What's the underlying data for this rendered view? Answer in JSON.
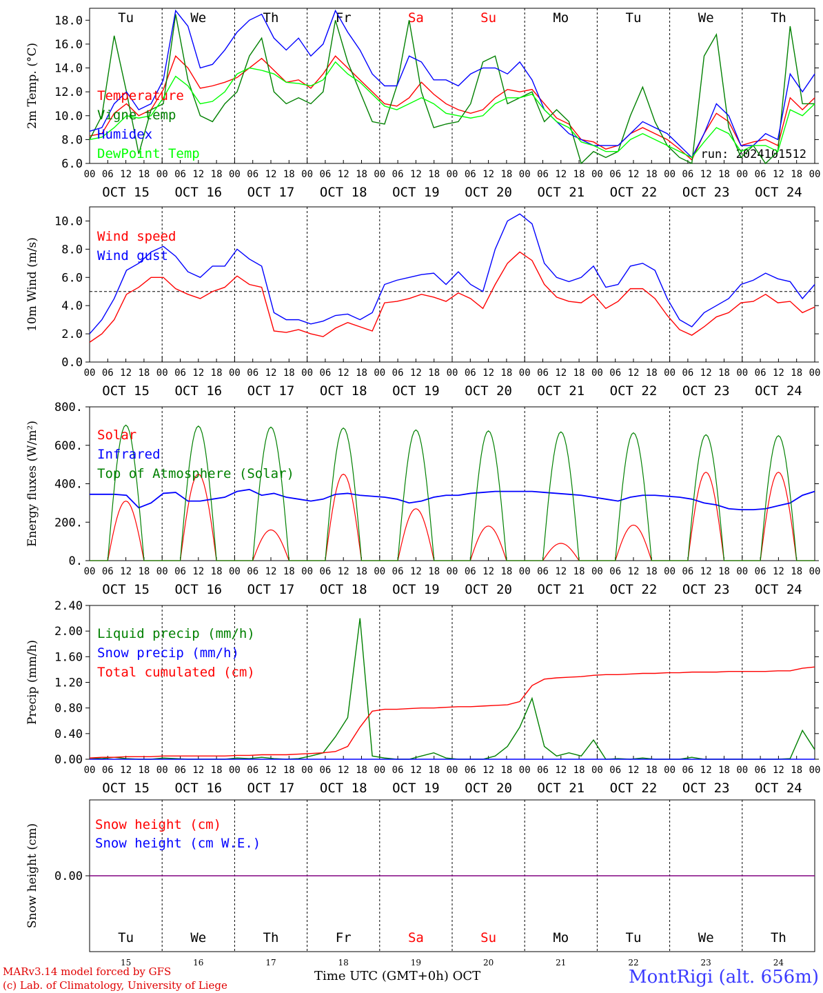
{
  "chart_data": [
    {
      "type": "line",
      "ylabel": "2m Temp. (°C)",
      "ylim": [
        6,
        19
      ],
      "yticks": [
        "6.0",
        "8.0",
        "10.0",
        "12.0",
        "14.0",
        "16.0",
        "18.0"
      ],
      "run_label": "run: 2024101512",
      "x_start": "2024-10-15 00 UTC",
      "x_step_hours": 6,
      "series": [
        {
          "name": "Temperature",
          "color": "#ff0000",
          "values": [
            8.3,
            8.5,
            10.2,
            11.0,
            10.0,
            10.5,
            12.2,
            15.0,
            14.0,
            12.3,
            12.5,
            12.8,
            13.2,
            14.0,
            14.8,
            13.8,
            12.8,
            13.0,
            12.3,
            13.5,
            15.0,
            14.0,
            13.0,
            12.0,
            11.0,
            10.8,
            11.5,
            12.8,
            11.8,
            11.0,
            10.5,
            10.2,
            10.5,
            11.5,
            12.2,
            12.0,
            12.2,
            11.0,
            9.8,
            9.3,
            8.0,
            7.8,
            7.2,
            7.5,
            8.5,
            9.0,
            8.5,
            8.0,
            7.2,
            6.3,
            8.5,
            10.2,
            9.5,
            7.5,
            7.8,
            8.0,
            7.5,
            11.5,
            10.5,
            11.5
          ]
        },
        {
          "name": "Vigne temp",
          "color": "#008000",
          "values": [
            8.0,
            10.0,
            16.7,
            12.0,
            6.8,
            10.5,
            11.0,
            18.5,
            13.0,
            10.0,
            9.5,
            11.0,
            12.0,
            15.0,
            16.5,
            12.0,
            11.0,
            11.5,
            11.0,
            12.0,
            18.0,
            14.5,
            12.0,
            9.5,
            9.3,
            12.5,
            18.0,
            12.0,
            9.0,
            9.3,
            9.5,
            11.0,
            14.5,
            15.0,
            11.0,
            11.5,
            12.0,
            9.5,
            10.5,
            9.5,
            6.0,
            7.0,
            6.5,
            7.0,
            10.0,
            12.4,
            9.5,
            7.5,
            6.5,
            6.0,
            15.0,
            16.8,
            9.0,
            6.5,
            7.5,
            6.0,
            7.0,
            17.5,
            11.0,
            11.0
          ]
        },
        {
          "name": "Humidex",
          "color": "#0000ff",
          "values": [
            8.7,
            9.0,
            11.0,
            12.0,
            10.5,
            11.0,
            13.0,
            18.8,
            17.5,
            14.0,
            14.3,
            15.5,
            17.0,
            18.0,
            18.5,
            16.5,
            15.5,
            16.5,
            15.0,
            16.0,
            18.8,
            17.0,
            15.5,
            13.5,
            12.5,
            12.5,
            15.0,
            14.5,
            13.0,
            13.0,
            12.5,
            13.5,
            14.0,
            14.0,
            13.5,
            14.5,
            13.0,
            10.5,
            9.5,
            8.5,
            8.0,
            7.5,
            7.5,
            7.5,
            8.5,
            9.5,
            9.0,
            8.5,
            7.5,
            6.5,
            8.5,
            11.0,
            10.0,
            7.5,
            7.5,
            8.5,
            8.0,
            13.5,
            12.0,
            13.5
          ]
        },
        {
          "name": "DewPoint Temp",
          "color": "#00ff00",
          "values": [
            8.0,
            8.2,
            9.0,
            10.0,
            9.8,
            10.0,
            11.5,
            13.3,
            12.5,
            11.0,
            11.2,
            12.0,
            13.5,
            14.0,
            13.8,
            13.5,
            12.8,
            12.7,
            12.5,
            13.0,
            14.5,
            13.5,
            12.8,
            11.8,
            10.8,
            10.5,
            11.0,
            11.5,
            11.0,
            10.2,
            10.0,
            9.8,
            10.0,
            11.0,
            11.5,
            11.5,
            11.8,
            10.5,
            9.5,
            9.0,
            7.8,
            7.5,
            7.0,
            7.0,
            8.0,
            8.5,
            8.0,
            7.5,
            7.0,
            6.5,
            7.8,
            9.0,
            8.5,
            7.0,
            7.5,
            7.5,
            7.0,
            10.5,
            10.0,
            11.0
          ]
        }
      ]
    },
    {
      "type": "line",
      "ylabel": "10m Wind (m/s)",
      "ylim": [
        0,
        11
      ],
      "yticks": [
        "0.0",
        "2.0",
        "4.0",
        "6.0",
        "8.0",
        "10.0"
      ],
      "reference_line": 5.0,
      "x_start": "2024-10-15 00 UTC",
      "x_step_hours": 6,
      "series": [
        {
          "name": "Wind speed",
          "color": "#ff0000",
          "values": [
            1.4,
            2.0,
            3.0,
            4.8,
            5.3,
            6.0,
            6.0,
            5.2,
            4.8,
            4.5,
            5.0,
            5.3,
            6.1,
            5.5,
            5.3,
            2.2,
            2.1,
            2.3,
            2.0,
            1.8,
            2.4,
            2.8,
            2.5,
            2.2,
            4.2,
            4.3,
            4.5,
            4.8,
            4.6,
            4.3,
            4.9,
            4.5,
            3.8,
            5.5,
            7.0,
            7.8,
            7.2,
            5.5,
            4.6,
            4.3,
            4.2,
            4.8,
            3.8,
            4.3,
            5.2,
            5.2,
            4.5,
            3.3,
            2.3,
            1.9,
            2.5,
            3.2,
            3.5,
            4.2,
            4.3,
            4.8,
            4.2,
            4.3,
            3.5,
            3.9
          ]
        },
        {
          "name": "Wind gust",
          "color": "#0000ff",
          "values": [
            2.0,
            3.0,
            4.5,
            6.5,
            7.0,
            7.8,
            8.2,
            7.5,
            6.4,
            6.0,
            6.8,
            6.8,
            8.0,
            7.3,
            6.8,
            3.5,
            3.0,
            3.0,
            2.7,
            2.9,
            3.3,
            3.4,
            3.0,
            3.5,
            5.5,
            5.8,
            6.0,
            6.2,
            6.3,
            5.5,
            6.4,
            5.5,
            5.0,
            8.0,
            10.0,
            10.5,
            9.8,
            7.0,
            6.0,
            5.7,
            6.0,
            6.8,
            5.3,
            5.5,
            6.8,
            7.0,
            6.5,
            4.5,
            3.0,
            2.5,
            3.5,
            4.0,
            4.5,
            5.5,
            5.8,
            6.3,
            5.9,
            5.7,
            4.5,
            5.5
          ]
        }
      ]
    },
    {
      "type": "line",
      "ylabel": "Energy fluxes (W/m²)",
      "ylim": [
        0,
        800
      ],
      "yticks": [
        "0.",
        "200.",
        "400.",
        "600.",
        "800."
      ],
      "x_start": "2024-10-15 00 UTC",
      "x_step_hours": 6,
      "series": [
        {
          "name": "Solar",
          "color": "#ff0000",
          "peaks": [
            310,
            450,
            160,
            450,
            270,
            180,
            90,
            185,
            460,
            460
          ]
        },
        {
          "name": "Infrared",
          "color": "#0000ff",
          "values": [
            345,
            345,
            345,
            340,
            275,
            300,
            350,
            355,
            310,
            310,
            320,
            330,
            360,
            370,
            340,
            350,
            330,
            320,
            310,
            320,
            345,
            350,
            340,
            335,
            330,
            320,
            300,
            310,
            330,
            340,
            340,
            350,
            355,
            360,
            360,
            360,
            360,
            355,
            350,
            345,
            340,
            330,
            320,
            310,
            330,
            340,
            340,
            335,
            330,
            320,
            300,
            290,
            270,
            265,
            265,
            270,
            285,
            300,
            340,
            360
          ]
        },
        {
          "name": "Top of Atmosphere (Solar)",
          "color": "#008000",
          "peaks": [
            705,
            700,
            695,
            690,
            680,
            675,
            670,
            665,
            655,
            650
          ]
        }
      ]
    },
    {
      "type": "line",
      "ylabel": "Precip (mm/h)",
      "ylim": [
        0,
        2.4
      ],
      "yticks": [
        "0.00",
        "0.40",
        "0.80",
        "1.20",
        "1.60",
        "2.00",
        "2.40"
      ],
      "x_start": "2024-10-15 00 UTC",
      "x_step_hours": 6,
      "series": [
        {
          "name": "Liquid precip (mm/h)",
          "color": "#008000",
          "values": [
            0.02,
            0.01,
            0.03,
            0.01,
            0.0,
            0.0,
            0.02,
            0.01,
            0.0,
            0.0,
            0.0,
            0.0,
            0.02,
            0.01,
            0.03,
            0.01,
            0.0,
            0.01,
            0.05,
            0.1,
            0.35,
            0.65,
            2.2,
            0.05,
            0.02,
            0.0,
            0.0,
            0.05,
            0.1,
            0.02,
            0.0,
            0.0,
            0.0,
            0.05,
            0.2,
            0.5,
            0.95,
            0.2,
            0.05,
            0.1,
            0.05,
            0.3,
            0.0,
            0.01,
            0.0,
            0.02,
            0.0,
            0.0,
            0.0,
            0.03,
            0.0,
            0.0,
            0.0,
            0.0,
            0.0,
            0.0,
            0.0,
            0.01,
            0.45,
            0.15
          ]
        },
        {
          "name": "Snow precip (mm/h)",
          "color": "#0000ff",
          "values": [
            0,
            0,
            0,
            0,
            0,
            0,
            0,
            0,
            0,
            0,
            0,
            0,
            0,
            0,
            0,
            0,
            0,
            0,
            0,
            0,
            0,
            0,
            0,
            0,
            0,
            0,
            0,
            0,
            0,
            0,
            0,
            0,
            0,
            0,
            0,
            0,
            0,
            0,
            0,
            0,
            0,
            0,
            0,
            0,
            0,
            0,
            0,
            0,
            0,
            0,
            0,
            0,
            0,
            0,
            0,
            0,
            0,
            0,
            0,
            0
          ]
        },
        {
          "name": "Total cumulated (cm)",
          "color": "#ff0000",
          "values": [
            0.02,
            0.03,
            0.03,
            0.04,
            0.04,
            0.04,
            0.05,
            0.05,
            0.05,
            0.05,
            0.05,
            0.05,
            0.06,
            0.06,
            0.07,
            0.07,
            0.07,
            0.08,
            0.09,
            0.1,
            0.12,
            0.2,
            0.5,
            0.75,
            0.78,
            0.78,
            0.79,
            0.8,
            0.8,
            0.81,
            0.82,
            0.82,
            0.83,
            0.84,
            0.85,
            0.9,
            1.15,
            1.25,
            1.27,
            1.28,
            1.29,
            1.31,
            1.32,
            1.32,
            1.33,
            1.34,
            1.34,
            1.35,
            1.35,
            1.36,
            1.36,
            1.36,
            1.37,
            1.37,
            1.37,
            1.37,
            1.38,
            1.38,
            1.42,
            1.44
          ]
        }
      ]
    },
    {
      "type": "line",
      "ylabel": "Snow height (cm)",
      "yticks": [
        "0.00"
      ],
      "series": [
        {
          "name": "Snow height (cm)",
          "color": "#ff0000",
          "values": [
            0,
            0
          ]
        },
        {
          "name": "Snow height (cm W.E.)",
          "color": "#0000ff",
          "values": [
            0,
            0
          ]
        }
      ]
    }
  ],
  "axes": {
    "hour_ticks": [
      "00",
      "06",
      "12",
      "18"
    ],
    "last_hour_tick": "00",
    "date_labels": [
      "OCT 15",
      "OCT 16",
      "OCT 17",
      "OCT 18",
      "OCT 19",
      "OCT 20",
      "OCT 21",
      "OCT 22",
      "OCT 23",
      "OCT 24"
    ],
    "day_names": [
      "Tu",
      "We",
      "Th",
      "Fr",
      "Sa",
      "Su",
      "Mo",
      "Tu",
      "We",
      "Th"
    ],
    "weekend_flags": [
      false,
      false,
      false,
      false,
      true,
      true,
      false,
      false,
      false,
      false
    ],
    "day_numbers": [
      "15",
      "16",
      "17",
      "18",
      "19",
      "20",
      "21",
      "22",
      "23",
      "24"
    ]
  },
  "colors": {
    "weekend": "#ff0000",
    "weekday": "#000000",
    "snow_line": "#800080",
    "ref_line": "#000000"
  },
  "footer": {
    "model": "MARv3.14 model forced by GFS",
    "credit": "(c) Lab. of Climatology, University of Liege",
    "xaxis_title": "Time UTC (GMT+0h)",
    "month": "OCT",
    "station": "MontRigi (alt. 656m)"
  }
}
